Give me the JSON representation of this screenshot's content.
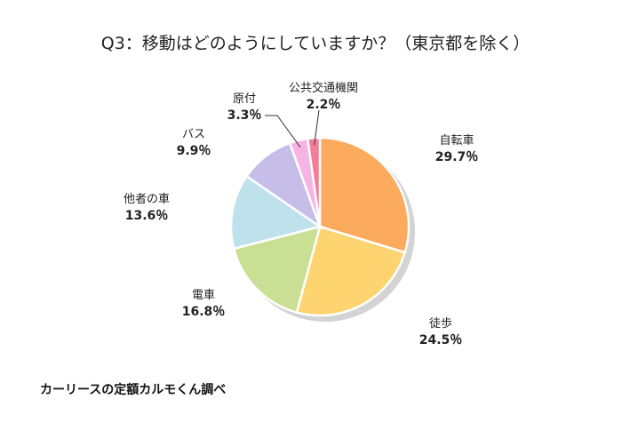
{
  "chart_data": {
    "type": "pie",
    "title": "Q3：移動はどのようにしていますか？（東京都を除く）",
    "unit": "%",
    "slices": [
      {
        "label": "自転車",
        "value": 29.7,
        "value_text": "29.7％",
        "color": "#fcaa5e"
      },
      {
        "label": "徒歩",
        "value": 24.5,
        "value_text": "24.5％",
        "color": "#fdd46f"
      },
      {
        "label": "電車",
        "value": 16.8,
        "value_text": "16.8％",
        "color": "#c9df93"
      },
      {
        "label": "他者の車",
        "value": 13.6,
        "value_text": "13.6％",
        "color": "#bfe1ec"
      },
      {
        "label": "バス",
        "value": 9.9,
        "value_text": "9.9％",
        "color": "#c6bde8"
      },
      {
        "label": "原付",
        "value": 3.3,
        "value_text": "3.3％",
        "color": "#f6b4e4"
      },
      {
        "label": "公共交通機関",
        "value": 2.2,
        "value_text": "2.2％",
        "color": "#f37d97"
      }
    ]
  },
  "source": "カーリースの定額カルモくん調べ"
}
